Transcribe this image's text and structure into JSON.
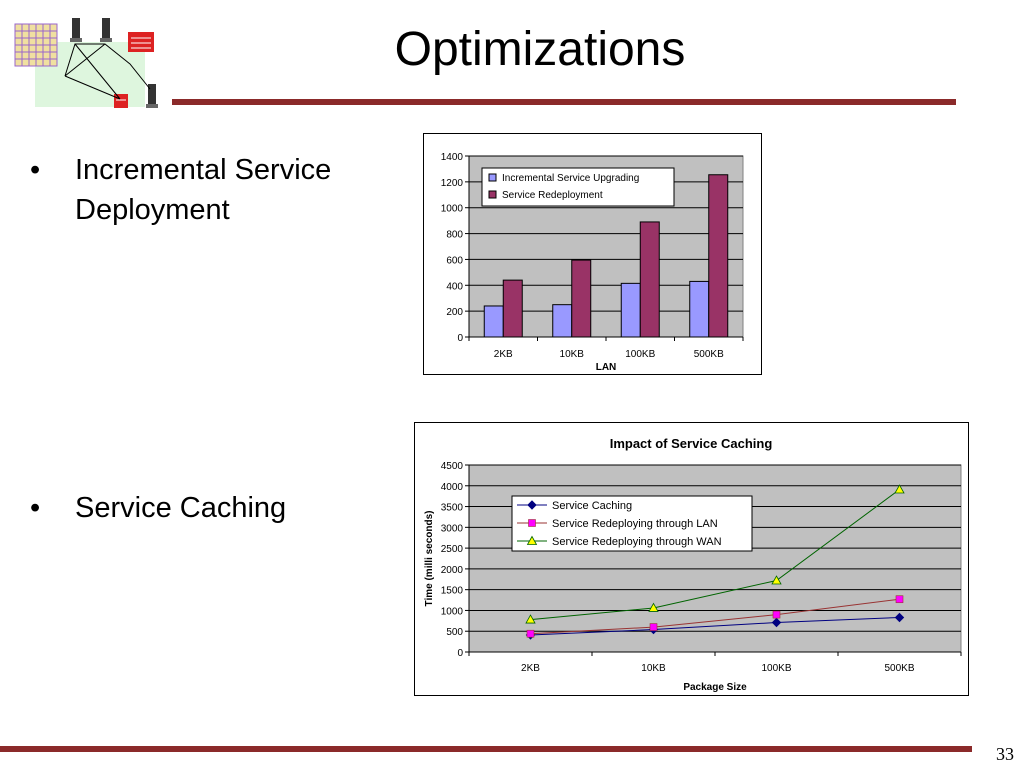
{
  "slide": {
    "title": "Optimizations",
    "page_number": "33",
    "bullets": [
      {
        "marker": "•",
        "text": "Incremental Service Deployment"
      },
      {
        "marker": "•",
        "text": "Service Caching"
      }
    ]
  },
  "colors": {
    "rule": "#8b2a2a",
    "plot_bg": "#c0c0c0",
    "incremental": "#9999ff",
    "redeployment": "#993366",
    "caching": "#000080",
    "lan": "#ff00ff",
    "wan": "#ffff00"
  },
  "chart_data": [
    {
      "type": "bar",
      "title": "",
      "xlabel": "LAN",
      "ylabel": "",
      "categories": [
        "2KB",
        "10KB",
        "100KB",
        "500KB"
      ],
      "ylim": [
        0,
        1400
      ],
      "yticks": [
        0,
        200,
        400,
        600,
        800,
        1000,
        1200,
        1400
      ],
      "grid": true,
      "legend": "top-left",
      "series": [
        {
          "name": "Incremental Service Upgrading",
          "values": [
            240,
            250,
            415,
            430
          ],
          "color": "#9999ff"
        },
        {
          "name": "Service Redeployment",
          "values": [
            440,
            595,
            890,
            1255
          ],
          "color": "#993366"
        }
      ]
    },
    {
      "type": "line",
      "title": "Impact of Service Caching",
      "xlabel": "Package Size",
      "ylabel": "Time (milli seconds)",
      "categories": [
        "2KB",
        "10KB",
        "100KB",
        "500KB"
      ],
      "ylim": [
        0,
        4500
      ],
      "yticks": [
        0,
        500,
        1000,
        1500,
        2000,
        2500,
        3000,
        3500,
        4000,
        4500
      ],
      "grid": true,
      "legend": "top-center",
      "series": [
        {
          "name": "Service Caching",
          "values": [
            410,
            540,
            710,
            830
          ],
          "color": "#000080",
          "marker": "diamond"
        },
        {
          "name": "Service Redeploying through LAN",
          "values": [
            440,
            600,
            900,
            1270
          ],
          "color": "#ff00ff",
          "line": "#993333",
          "marker": "square"
        },
        {
          "name": "Service Redeploying through WAN",
          "values": [
            780,
            1060,
            1720,
            3910
          ],
          "color": "#ffff00",
          "line": "#006400",
          "marker": "triangle"
        }
      ]
    }
  ]
}
